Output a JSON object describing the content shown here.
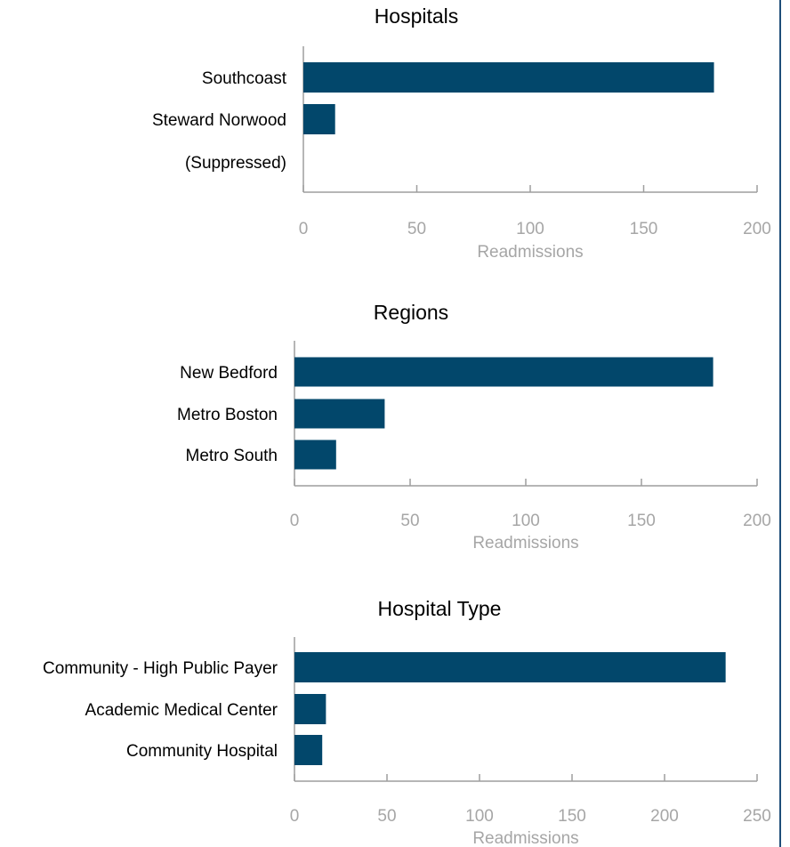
{
  "colors": {
    "bar": "#02476b",
    "axis": "#9e9e9e",
    "tick_text": "#a6a6a6",
    "frame": "#1f4e79"
  },
  "chart_data": [
    {
      "type": "bar",
      "orientation": "horizontal",
      "title": "Hospitals",
      "categories": [
        "Southcoast",
        "Steward Norwood",
        "(Suppressed)"
      ],
      "values": [
        181,
        14,
        null
      ],
      "xlabel": "Readmissions",
      "xlim": [
        0,
        200
      ],
      "xticks": [
        0,
        50,
        100,
        150,
        200
      ],
      "grid": false
    },
    {
      "type": "bar",
      "orientation": "horizontal",
      "title": "Regions",
      "categories": [
        "New Bedford",
        "Metro Boston",
        "Metro South"
      ],
      "values": [
        181,
        39,
        18
      ],
      "xlabel": "Readmissions",
      "xlim": [
        0,
        200
      ],
      "xticks": [
        0,
        50,
        100,
        150,
        200
      ],
      "grid": false
    },
    {
      "type": "bar",
      "orientation": "horizontal",
      "title": "Hospital Type",
      "categories": [
        "Community - High Public Payer",
        "Academic Medical Center",
        "Community Hospital"
      ],
      "values": [
        233,
        17,
        15
      ],
      "xlabel": "Readmissions",
      "xlim": [
        0,
        250
      ],
      "xticks": [
        0,
        50,
        100,
        150,
        200,
        250
      ],
      "grid": false
    }
  ]
}
